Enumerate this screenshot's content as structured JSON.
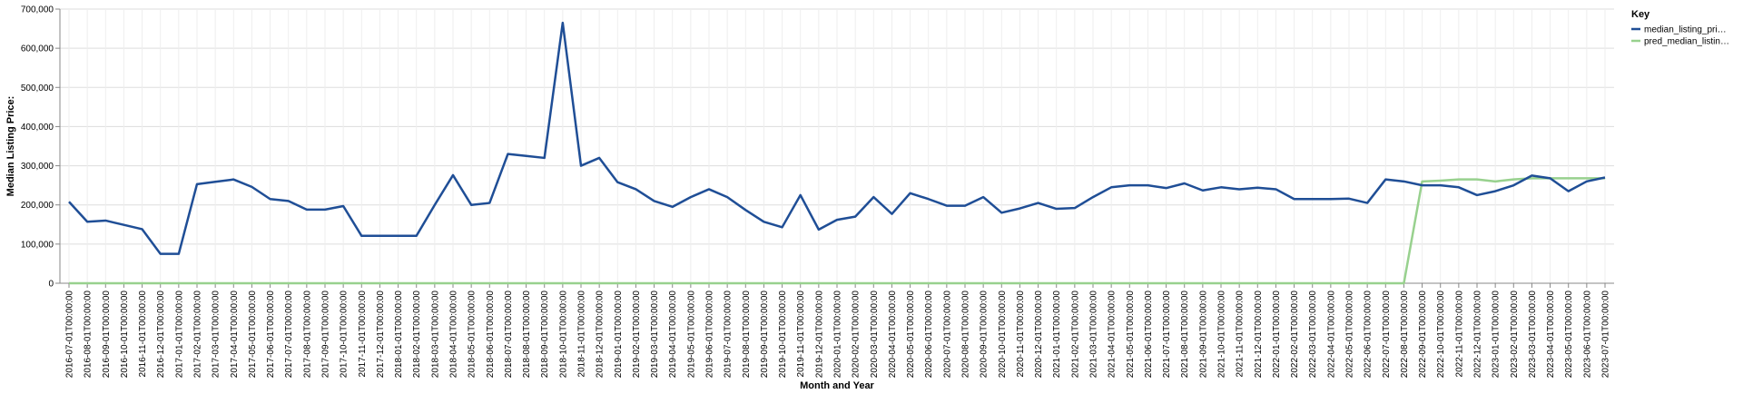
{
  "chart_data": {
    "type": "line",
    "xlabel": "Month and Year",
    "ylabel": "Median Listing Price:",
    "ylim": [
      0,
      700000
    ],
    "y_ticks": [
      0,
      100000,
      200000,
      300000,
      400000,
      500000,
      600000,
      700000
    ],
    "y_tick_labels": [
      "0",
      "100,000",
      "200,000",
      "300,000",
      "400,000",
      "500,000",
      "600,000",
      "700,000"
    ],
    "grid": true,
    "legend": {
      "title": "Key",
      "placement": "top-right"
    },
    "x": [
      "2016-07-01T00:00:00",
      "2016-08-01T00:00:00",
      "2016-09-01T00:00:00",
      "2016-10-01T00:00:00",
      "2016-11-01T00:00:00",
      "2016-12-01T00:00:00",
      "2017-01-01T00:00:00",
      "2017-02-01T00:00:00",
      "2017-03-01T00:00:00",
      "2017-04-01T00:00:00",
      "2017-05-01T00:00:00",
      "2017-06-01T00:00:00",
      "2017-07-01T00:00:00",
      "2017-08-01T00:00:00",
      "2017-09-01T00:00:00",
      "2017-10-01T00:00:00",
      "2017-11-01T00:00:00",
      "2017-12-01T00:00:00",
      "2018-01-01T00:00:00",
      "2018-02-01T00:00:00",
      "2018-03-01T00:00:00",
      "2018-04-01T00:00:00",
      "2018-05-01T00:00:00",
      "2018-06-01T00:00:00",
      "2018-07-01T00:00:00",
      "2018-08-01T00:00:00",
      "2018-09-01T00:00:00",
      "2018-10-01T00:00:00",
      "2018-11-01T00:00:00",
      "2018-12-01T00:00:00",
      "2019-01-01T00:00:00",
      "2019-02-01T00:00:00",
      "2019-03-01T00:00:00",
      "2019-04-01T00:00:00",
      "2019-05-01T00:00:00",
      "2019-06-01T00:00:00",
      "2019-07-01T00:00:00",
      "2019-08-01T00:00:00",
      "2019-09-01T00:00:00",
      "2019-10-01T00:00:00",
      "2019-11-01T00:00:00",
      "2019-12-01T00:00:00",
      "2020-01-01T00:00:00",
      "2020-02-01T00:00:00",
      "2020-03-01T00:00:00",
      "2020-04-01T00:00:00",
      "2020-05-01T00:00:00",
      "2020-06-01T00:00:00",
      "2020-07-01T00:00:00",
      "2020-08-01T00:00:00",
      "2020-09-01T00:00:00",
      "2020-10-01T00:00:00",
      "2020-11-01T00:00:00",
      "2020-12-01T00:00:00",
      "2021-01-01T00:00:00",
      "2021-02-01T00:00:00",
      "2021-03-01T00:00:00",
      "2021-04-01T00:00:00",
      "2021-05-01T00:00:00",
      "2021-06-01T00:00:00",
      "2021-07-01T00:00:00",
      "2021-08-01T00:00:00",
      "2021-09-01T00:00:00",
      "2021-10-01T00:00:00",
      "2021-11-01T00:00:00",
      "2021-12-01T00:00:00",
      "2022-01-01T00:00:00",
      "2022-02-01T00:00:00",
      "2022-03-01T00:00:00",
      "2022-04-01T00:00:00",
      "2022-05-01T00:00:00",
      "2022-06-01T00:00:00",
      "2022-07-01T00:00:00",
      "2022-08-01T00:00:00",
      "2022-09-01T00:00:00",
      "2022-10-01T00:00:00",
      "2022-11-01T00:00:00",
      "2022-12-01T00:00:00",
      "2023-01-01T00:00:00",
      "2023-02-01T00:00:00",
      "2023-03-01T00:00:00",
      "2023-04-01T00:00:00",
      "2023-05-01T00:00:00",
      "2023-06-01T00:00:00",
      "2023-07-01T00:00:00"
    ],
    "series": [
      {
        "name": "median_listing_pri…",
        "color": "#1f4e96",
        "values": [
          208000,
          157000,
          160000,
          149000,
          138000,
          75000,
          75000,
          253000,
          259000,
          265000,
          246000,
          215000,
          210000,
          188000,
          188000,
          197000,
          121000,
          121000,
          121000,
          121000,
          200000,
          276000,
          200000,
          205000,
          330000,
          325000,
          320000,
          665000,
          300000,
          320000,
          258000,
          240000,
          210000,
          195000,
          220000,
          240000,
          220000,
          187000,
          157000,
          143000,
          225000,
          137000,
          162000,
          170000,
          220000,
          177000,
          230000,
          215000,
          198000,
          198000,
          220000,
          180000,
          191000,
          205000,
          190000,
          192000,
          220000,
          245000,
          250000,
          250000,
          243000,
          255000,
          237000,
          245000,
          240000,
          244000,
          240000,
          215000,
          215000,
          215000,
          216000,
          205000,
          265000,
          260000,
          250000,
          250000,
          245000,
          225000,
          235000,
          250000,
          275000,
          268000,
          235000,
          260000,
          270000
        ]
      },
      {
        "name": "pred_median_listin…",
        "color": "#98d18e",
        "values": [
          0,
          0,
          0,
          0,
          0,
          0,
          0,
          0,
          0,
          0,
          0,
          0,
          0,
          0,
          0,
          0,
          0,
          0,
          0,
          0,
          0,
          0,
          0,
          0,
          0,
          0,
          0,
          0,
          0,
          0,
          0,
          0,
          0,
          0,
          0,
          0,
          0,
          0,
          0,
          0,
          0,
          0,
          0,
          0,
          0,
          0,
          0,
          0,
          0,
          0,
          0,
          0,
          0,
          0,
          0,
          0,
          0,
          0,
          0,
          0,
          0,
          0,
          0,
          0,
          0,
          0,
          0,
          0,
          0,
          0,
          0,
          0,
          0,
          0,
          260000,
          262000,
          265000,
          265000,
          260000,
          265000,
          268000,
          268000,
          268000,
          268000,
          268000
        ]
      }
    ]
  }
}
